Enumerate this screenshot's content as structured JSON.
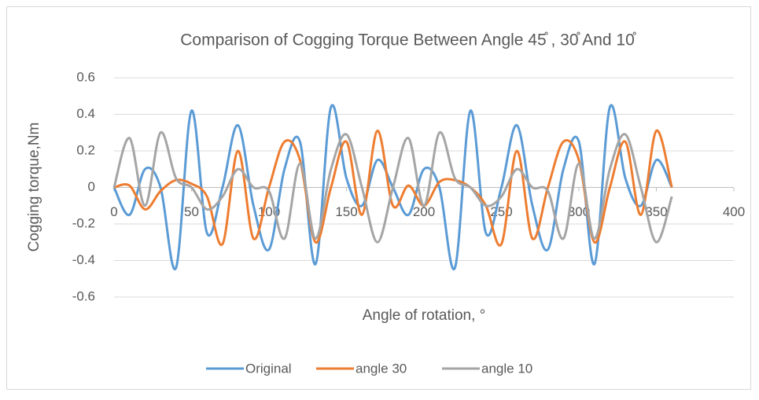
{
  "chart_data": {
    "type": "line",
    "title": "Comparison of Cogging Torque Between Angle 45̊  , 30̊  And 10̊",
    "x_label": "Angle of rotation, °",
    "y_label": "Cogging torque,Nm",
    "x": [
      0,
      10,
      20,
      30,
      40,
      50,
      60,
      70,
      80,
      90,
      100,
      110,
      120,
      130,
      140,
      150,
      160,
      170,
      180,
      190,
      200,
      210,
      220,
      230,
      240,
      250,
      260,
      270,
      280,
      290,
      300,
      310,
      320,
      330,
      340,
      350,
      360
    ],
    "series": [
      {
        "name": "Original",
        "color": "#5b9bd5",
        "values": [
          0,
          -0.15,
          0.1,
          0.0,
          -0.44,
          0.42,
          -0.25,
          0.0,
          0.34,
          -0.1,
          -0.34,
          0.1,
          0.25,
          -0.42,
          0.44,
          0.05,
          -0.1,
          0.15,
          0.0,
          -0.15,
          0.1,
          0.0,
          -0.44,
          0.42,
          -0.25,
          0.0,
          0.34,
          -0.1,
          -0.34,
          0.1,
          0.25,
          -0.42,
          0.44,
          0.05,
          -0.1,
          0.15,
          0.0
        ]
      },
      {
        "name": "angle 30",
        "color": "#ed7d31",
        "values": [
          0,
          0.01,
          -0.12,
          -0.02,
          0.04,
          0.02,
          -0.05,
          -0.31,
          0.2,
          -0.28,
          0.0,
          0.25,
          0.15,
          -0.3,
          0.0,
          0.25,
          -0.15,
          0.31,
          -0.1,
          0.01,
          -0.1,
          0.03,
          0.04,
          0.0,
          -0.1,
          -0.31,
          0.2,
          -0.28,
          0.0,
          0.25,
          0.15,
          -0.3,
          0.0,
          0.25,
          -0.15,
          0.31,
          0.0
        ]
      },
      {
        "name": "angle 10",
        "color": "#a5a5a5",
        "values": [
          0,
          0.27,
          -0.1,
          0.3,
          0.05,
          0.0,
          -0.12,
          -0.05,
          0.1,
          0.0,
          -0.02,
          -0.28,
          0.13,
          -0.28,
          0.1,
          0.29,
          0.0,
          -0.3,
          0.0,
          0.27,
          -0.1,
          0.3,
          0.05,
          0.0,
          -0.1,
          -0.05,
          0.1,
          0.0,
          -0.02,
          -0.28,
          0.13,
          -0.28,
          0.1,
          0.29,
          0.0,
          -0.3,
          -0.05
        ]
      }
    ],
    "xlim": [
      0,
      400
    ],
    "xticks": [
      0,
      50,
      100,
      150,
      200,
      250,
      300,
      350,
      400
    ],
    "ylim": [
      -0.6,
      0.6
    ],
    "yticks": [
      0.6,
      0.4,
      0.2,
      0,
      -0.2,
      -0.4,
      -0.6
    ],
    "grid": true,
    "legend": "bottom"
  }
}
